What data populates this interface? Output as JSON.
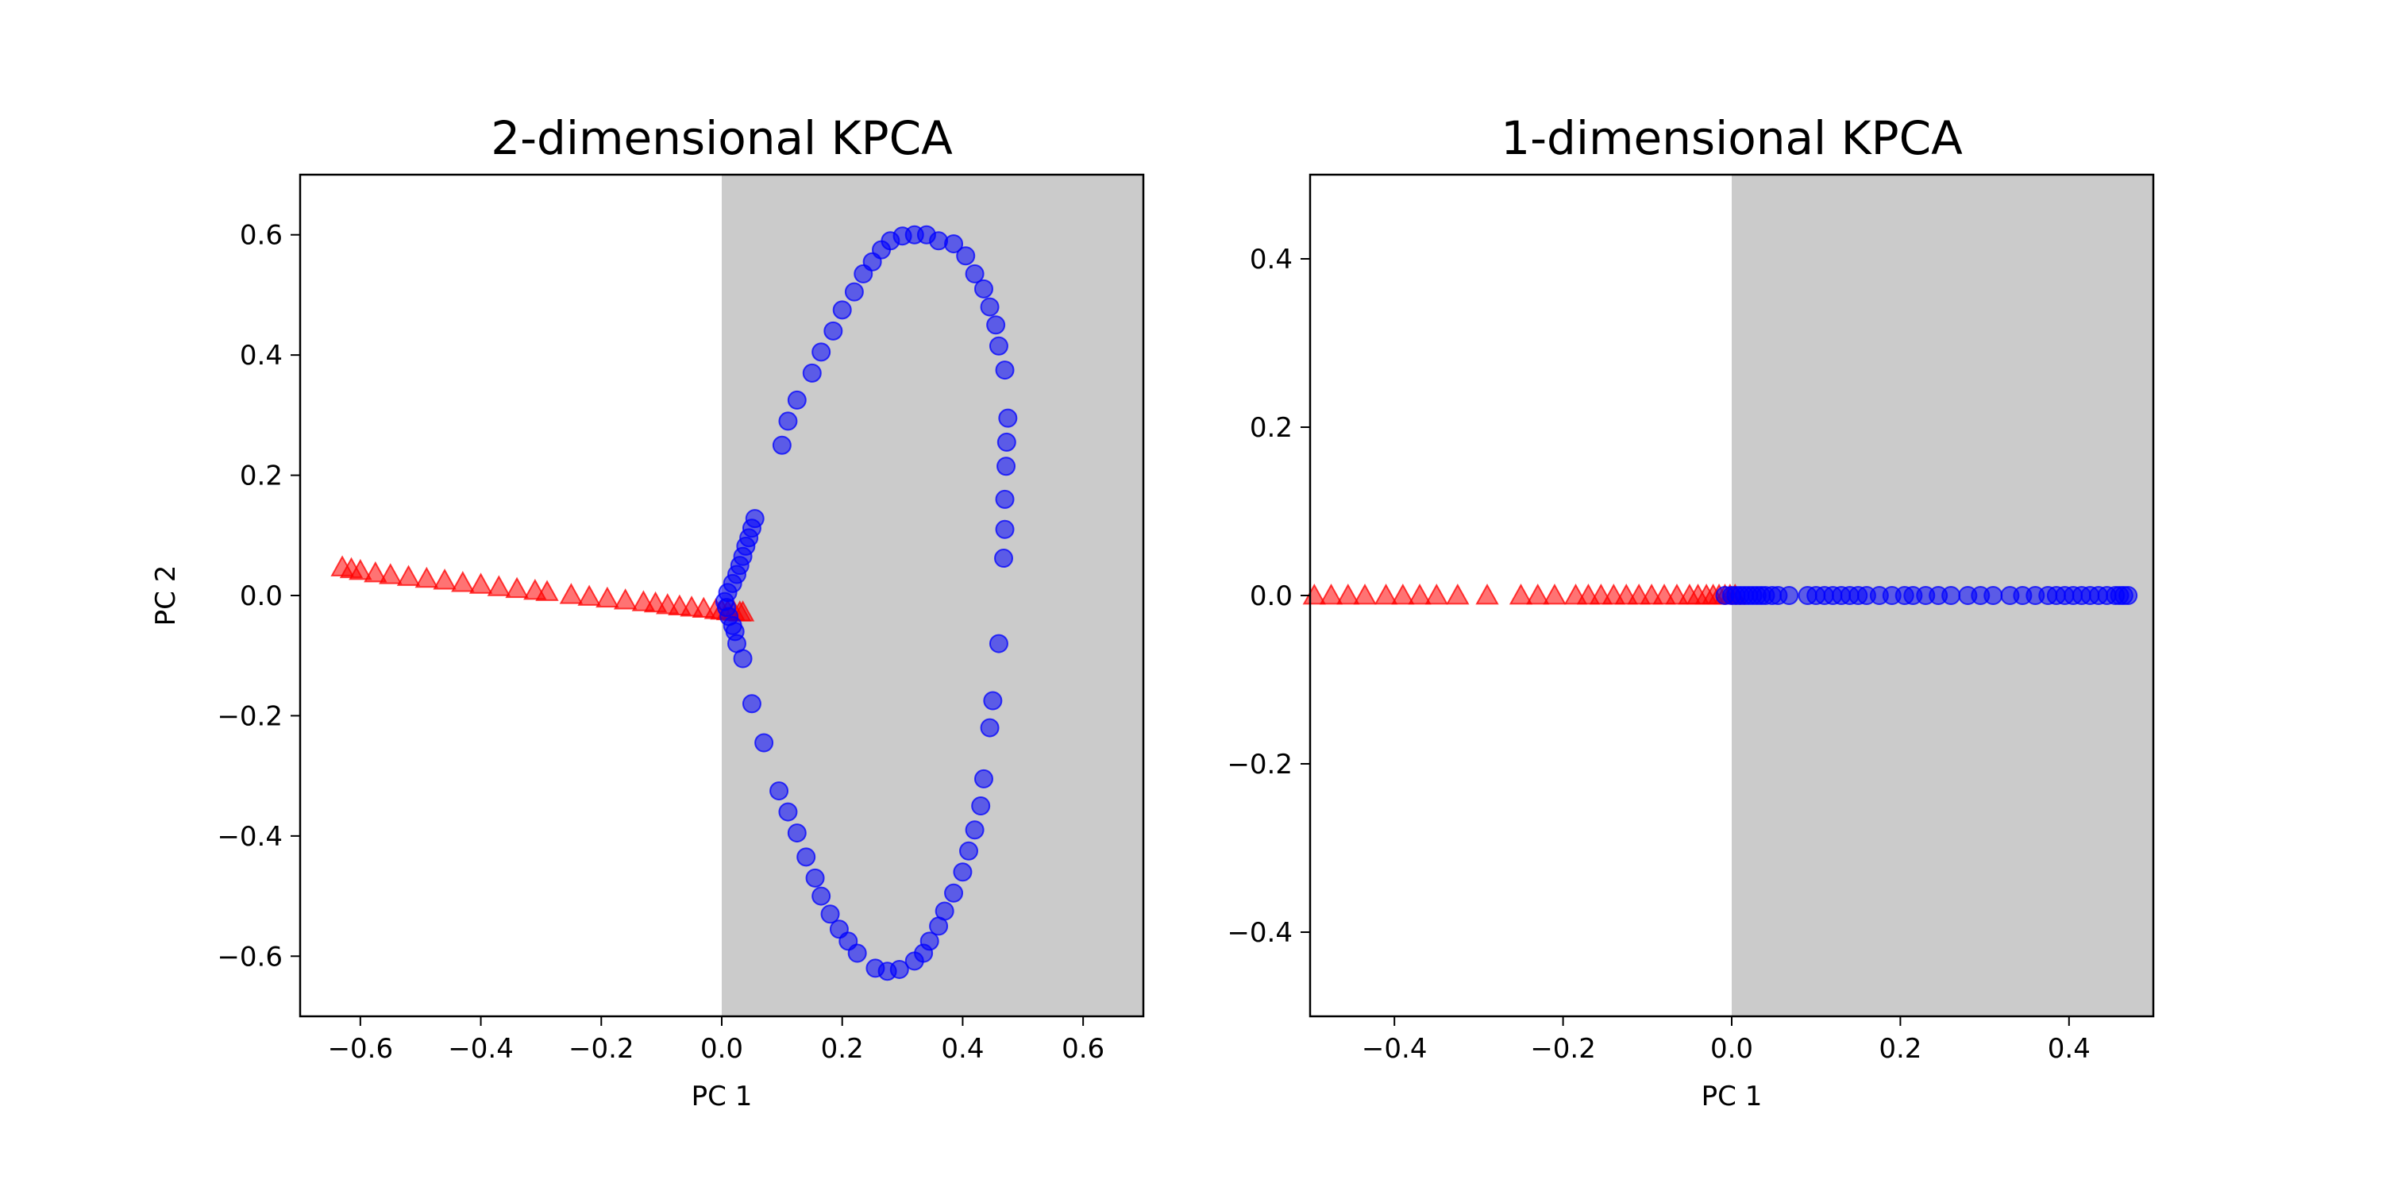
{
  "colors": {
    "background": "#ffffff",
    "region_fill": "#cbcbcb",
    "axis": "#000000",
    "class_a": "#ff0000",
    "class_b": "#0000ff",
    "marker_opacity": 0.55
  },
  "chart_data": [
    {
      "type": "scatter",
      "title": "2-dimensional KPCA",
      "xlabel": "PC 1",
      "ylabel": "PC 2",
      "xlim": [
        -0.7,
        0.7
      ],
      "ylim": [
        -0.7,
        0.7
      ],
      "xticks": [
        -0.6,
        -0.4,
        -0.2,
        0.0,
        0.2,
        0.4,
        0.6
      ],
      "xtick_labels": [
        "−0.6",
        "−0.4",
        "−0.2",
        "0.0",
        "0.2",
        "0.4",
        "0.6"
      ],
      "yticks": [
        0.6,
        0.4,
        0.2,
        0.0,
        -0.2,
        -0.4,
        -0.6
      ],
      "ytick_labels": [
        "0.6",
        "0.4",
        "0.2",
        "0.0",
        "−0.2",
        "−0.4",
        "−0.6"
      ],
      "grid": false,
      "legend": "none",
      "shaded_region": {
        "x_from": 0.0,
        "x_to": 0.7,
        "color": "#cbcbcb"
      },
      "series": [
        {
          "marker": "triangle",
          "color": "#ff0000",
          "points": [
            [
              -0.63,
              0.047
            ],
            [
              -0.615,
              0.044
            ],
            [
              -0.6,
              0.041
            ],
            [
              -0.575,
              0.037
            ],
            [
              -0.55,
              0.034
            ],
            [
              -0.52,
              0.031
            ],
            [
              -0.49,
              0.028
            ],
            [
              -0.46,
              0.025
            ],
            [
              -0.43,
              0.021
            ],
            [
              -0.4,
              0.018
            ],
            [
              -0.37,
              0.014
            ],
            [
              -0.34,
              0.011
            ],
            [
              -0.31,
              0.008
            ],
            [
              -0.29,
              0.006
            ],
            [
              -0.25,
              0.001
            ],
            [
              -0.22,
              -0.002
            ],
            [
              -0.19,
              -0.005
            ],
            [
              -0.16,
              -0.008
            ],
            [
              -0.13,
              -0.011
            ],
            [
              -0.11,
              -0.013
            ],
            [
              -0.09,
              -0.016
            ],
            [
              -0.07,
              -0.018
            ],
            [
              -0.05,
              -0.02
            ],
            [
              -0.03,
              -0.022
            ],
            [
              -0.01,
              -0.024
            ],
            [
              0.0,
              -0.025
            ],
            [
              0.01,
              -0.026
            ],
            [
              0.02,
              -0.027
            ],
            [
              0.03,
              -0.028
            ],
            [
              0.035,
              -0.028
            ]
          ]
        },
        {
          "marker": "circle",
          "color": "#0000ff",
          "points": [
            [
              0.32,
              0.6
            ],
            [
              0.3,
              0.598
            ],
            [
              0.28,
              0.59
            ],
            [
              0.265,
              0.575
            ],
            [
              0.25,
              0.555
            ],
            [
              0.235,
              0.535
            ],
            [
              0.22,
              0.505
            ],
            [
              0.2,
              0.475
            ],
            [
              0.185,
              0.44
            ],
            [
              0.165,
              0.405
            ],
            [
              0.15,
              0.37
            ],
            [
              0.125,
              0.325
            ],
            [
              0.11,
              0.29
            ],
            [
              0.1,
              0.25
            ],
            [
              0.34,
              0.6
            ],
            [
              0.36,
              0.59
            ],
            [
              0.385,
              0.585
            ],
            [
              0.405,
              0.565
            ],
            [
              0.42,
              0.535
            ],
            [
              0.435,
              0.51
            ],
            [
              0.445,
              0.48
            ],
            [
              0.455,
              0.45
            ],
            [
              0.46,
              0.415
            ],
            [
              0.47,
              0.375
            ],
            [
              0.475,
              0.295
            ],
            [
              0.473,
              0.255
            ],
            [
              0.472,
              0.215
            ],
            [
              0.47,
              0.16
            ],
            [
              0.47,
              0.11
            ],
            [
              0.468,
              0.062
            ],
            [
              0.055,
              0.128
            ],
            [
              0.05,
              0.112
            ],
            [
              0.045,
              0.096
            ],
            [
              0.04,
              0.082
            ],
            [
              0.035,
              0.065
            ],
            [
              0.03,
              0.05
            ],
            [
              0.025,
              0.035
            ],
            [
              0.018,
              0.02
            ],
            [
              0.01,
              0.005
            ],
            [
              0.005,
              -0.01
            ],
            [
              0.008,
              -0.02
            ],
            [
              0.012,
              -0.035
            ],
            [
              0.018,
              -0.05
            ],
            [
              0.022,
              -0.06
            ],
            [
              0.025,
              -0.08
            ],
            [
              0.035,
              -0.105
            ],
            [
              0.05,
              -0.18
            ],
            [
              0.07,
              -0.245
            ],
            [
              0.095,
              -0.325
            ],
            [
              0.11,
              -0.36
            ],
            [
              0.125,
              -0.395
            ],
            [
              0.14,
              -0.435
            ],
            [
              0.155,
              -0.47
            ],
            [
              0.165,
              -0.5
            ],
            [
              0.18,
              -0.53
            ],
            [
              0.195,
              -0.555
            ],
            [
              0.21,
              -0.575
            ],
            [
              0.225,
              -0.595
            ],
            [
              0.255,
              -0.62
            ],
            [
              0.275,
              -0.625
            ],
            [
              0.295,
              -0.622
            ],
            [
              0.32,
              -0.608
            ],
            [
              0.335,
              -0.595
            ],
            [
              0.345,
              -0.575
            ],
            [
              0.36,
              -0.55
            ],
            [
              0.37,
              -0.525
            ],
            [
              0.385,
              -0.495
            ],
            [
              0.4,
              -0.46
            ],
            [
              0.41,
              -0.425
            ],
            [
              0.42,
              -0.39
            ],
            [
              0.43,
              -0.35
            ],
            [
              0.435,
              -0.305
            ],
            [
              0.445,
              -0.22
            ],
            [
              0.45,
              -0.175
            ],
            [
              0.46,
              -0.08
            ]
          ]
        }
      ]
    },
    {
      "type": "scatter",
      "title": "1-dimensional KPCA",
      "xlabel": "PC 1",
      "ylabel": "",
      "xlim": [
        -0.5,
        0.5
      ],
      "ylim": [
        -0.5,
        0.5
      ],
      "xticks": [
        -0.4,
        -0.2,
        0.0,
        0.2,
        0.4
      ],
      "xtick_labels": [
        "−0.4",
        "−0.2",
        "0.0",
        "0.2",
        "0.4"
      ],
      "yticks": [
        0.4,
        0.2,
        0.0,
        -0.2,
        -0.4
      ],
      "ytick_labels": [
        "0.4",
        "0.2",
        "0.0",
        "−0.2",
        "−0.4"
      ],
      "grid": false,
      "legend": "none",
      "shaded_region": {
        "x_from": 0.0,
        "x_to": 0.5,
        "color": "#cbcbcb"
      },
      "series": [
        {
          "marker": "triangle",
          "color": "#ff0000",
          "points": [
            [
              -0.495,
              0
            ],
            [
              -0.475,
              0
            ],
            [
              -0.455,
              0
            ],
            [
              -0.435,
              0
            ],
            [
              -0.41,
              0
            ],
            [
              -0.39,
              0
            ],
            [
              -0.37,
              0
            ],
            [
              -0.35,
              0
            ],
            [
              -0.325,
              0
            ],
            [
              -0.29,
              0
            ],
            [
              -0.25,
              0
            ],
            [
              -0.23,
              0
            ],
            [
              -0.21,
              0
            ],
            [
              -0.185,
              0
            ],
            [
              -0.17,
              0
            ],
            [
              -0.155,
              0
            ],
            [
              -0.14,
              0
            ],
            [
              -0.125,
              0
            ],
            [
              -0.11,
              0
            ],
            [
              -0.095,
              0
            ],
            [
              -0.08,
              0
            ],
            [
              -0.065,
              0
            ],
            [
              -0.05,
              0
            ],
            [
              -0.04,
              0
            ],
            [
              -0.03,
              0
            ],
            [
              -0.022,
              0
            ],
            [
              -0.015,
              0
            ],
            [
              -0.008,
              0
            ],
            [
              -0.002,
              0
            ],
            [
              0.004,
              0
            ]
          ]
        },
        {
          "marker": "circle",
          "color": "#0000ff",
          "points": [
            [
              -0.008,
              0
            ],
            [
              0.0,
              0
            ],
            [
              0.005,
              0
            ],
            [
              0.01,
              0
            ],
            [
              0.015,
              0
            ],
            [
              0.02,
              0
            ],
            [
              0.025,
              0
            ],
            [
              0.03,
              0
            ],
            [
              0.035,
              0
            ],
            [
              0.04,
              0
            ],
            [
              0.048,
              0
            ],
            [
              0.055,
              0
            ],
            [
              0.068,
              0
            ],
            [
              0.09,
              0
            ],
            [
              0.1,
              0
            ],
            [
              0.11,
              0
            ],
            [
              0.12,
              0
            ],
            [
              0.13,
              0
            ],
            [
              0.14,
              0
            ],
            [
              0.15,
              0
            ],
            [
              0.16,
              0
            ],
            [
              0.175,
              0
            ],
            [
              0.19,
              0
            ],
            [
              0.205,
              0
            ],
            [
              0.215,
              0
            ],
            [
              0.23,
              0
            ],
            [
              0.245,
              0
            ],
            [
              0.26,
              0
            ],
            [
              0.28,
              0
            ],
            [
              0.295,
              0
            ],
            [
              0.31,
              0
            ],
            [
              0.33,
              0
            ],
            [
              0.345,
              0
            ],
            [
              0.36,
              0
            ],
            [
              0.375,
              0
            ],
            [
              0.385,
              0
            ],
            [
              0.395,
              0
            ],
            [
              0.405,
              0
            ],
            [
              0.415,
              0
            ],
            [
              0.425,
              0
            ],
            [
              0.435,
              0
            ],
            [
              0.445,
              0
            ],
            [
              0.455,
              0
            ],
            [
              0.46,
              0
            ],
            [
              0.465,
              0
            ],
            [
              0.47,
              0
            ]
          ]
        }
      ]
    }
  ]
}
